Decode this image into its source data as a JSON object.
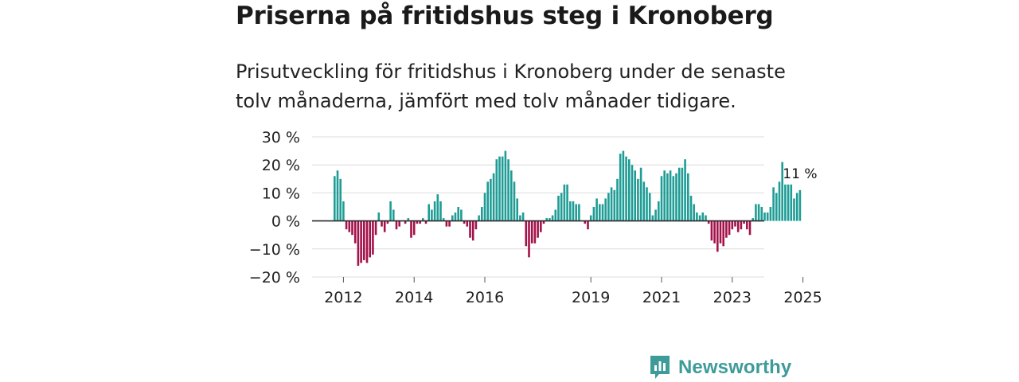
{
  "header": {
    "title": "Priserna på fritidshus steg i Kronoberg",
    "subtitle": "Prisutveckling för fritidshus i Kronoberg under de senaste tolv månaderna, jämfört med tolv månader tidigare."
  },
  "chart_data": {
    "type": "bar",
    "title": "Priserna på fritidshus steg i Kronoberg",
    "xlabel": "",
    "ylabel": "",
    "ylim": [
      -20,
      30
    ],
    "y_ticks": [
      30,
      20,
      10,
      0,
      -10,
      -20
    ],
    "y_tick_labels": [
      "30 %",
      "20 %",
      "10 %",
      "0 %",
      "−10 %",
      "−20 %"
    ],
    "x_ticks": [
      2012,
      2014,
      2016,
      2019,
      2021,
      2023,
      2025
    ],
    "x_tick_labels": [
      "2012",
      "2014",
      "2016",
      "2019",
      "2021",
      "2023",
      "2025"
    ],
    "grid": true,
    "frequency": "monthly",
    "series": [
      {
        "name": "Prisutveckling fritidshus Kronoberg",
        "start": "2011-10",
        "positive_color": "#1e9c95",
        "negative_color": "#a3124a",
        "values": [
          16,
          18,
          15,
          7,
          -3,
          -4,
          -5,
          -8,
          -16,
          -15,
          -14,
          -15,
          -13,
          -12,
          -5,
          3,
          -2,
          -4,
          -1,
          7,
          4,
          -3,
          -2,
          0,
          -1,
          1,
          -6,
          -5,
          -1,
          -1,
          1,
          -1,
          6,
          4,
          7,
          9.5,
          7,
          1,
          -2,
          -2,
          2,
          3,
          5,
          4,
          -1,
          -2,
          -6,
          -7,
          -3,
          2,
          5,
          10,
          14,
          15,
          17,
          22,
          23,
          23,
          25,
          22,
          18,
          14,
          8,
          2,
          3,
          -9,
          -13,
          -8,
          -8,
          -6,
          -4,
          -1,
          1,
          1,
          2,
          4,
          9,
          10,
          13,
          13,
          7,
          7,
          6,
          6,
          0,
          -1,
          -3,
          2,
          5,
          8,
          6,
          6,
          8,
          10,
          12,
          11,
          15,
          24,
          25,
          23,
          22,
          20,
          18,
          15,
          19,
          14,
          12,
          10,
          2,
          4,
          7,
          16,
          18,
          17,
          18,
          16,
          17,
          19,
          19,
          22,
          17,
          9,
          6,
          3,
          2,
          3,
          2,
          -1,
          -7,
          -8,
          -11,
          -8,
          -9,
          -6,
          -5,
          -3,
          -2,
          -4,
          -3,
          -1,
          -3,
          -5,
          1,
          6,
          6,
          5,
          3,
          3,
          5,
          12,
          10,
          14,
          21,
          13,
          13,
          13,
          8,
          10,
          11
        ]
      }
    ],
    "annotations": [
      {
        "text": "11 %",
        "target": "last-bar"
      }
    ]
  },
  "branding": {
    "name": "Newsworthy",
    "logo_icon": "newsworthy-logo-icon",
    "color": "#3d9b99"
  }
}
